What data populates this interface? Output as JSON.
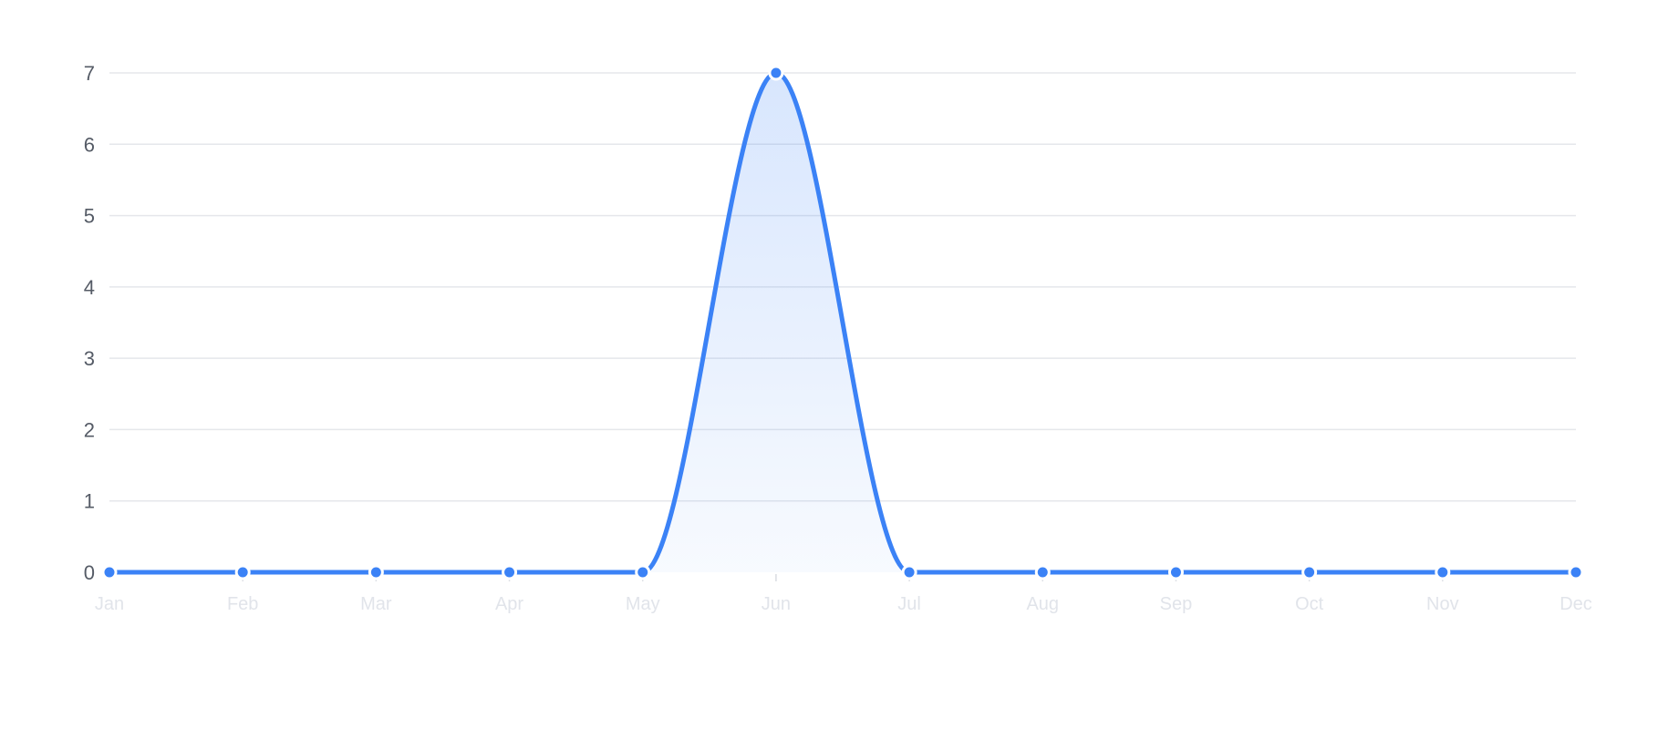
{
  "chart_data": {
    "type": "area",
    "categories": [
      "Jan",
      "Feb",
      "Mar",
      "Apr",
      "May",
      "Jun",
      "Jul",
      "Aug",
      "Sep",
      "Oct",
      "Nov",
      "Dec"
    ],
    "series": [
      {
        "values": [
          0,
          0,
          0,
          0,
          0,
          7,
          0,
          0,
          0,
          0,
          0,
          0
        ],
        "color": "#3b82f6"
      }
    ],
    "yticks": [
      0,
      1,
      2,
      3,
      4,
      5,
      6,
      7
    ],
    "ylim": [
      0,
      7
    ],
    "grid": true,
    "curve": "smooth",
    "title": "",
    "xlabel": "",
    "ylabel": ""
  }
}
